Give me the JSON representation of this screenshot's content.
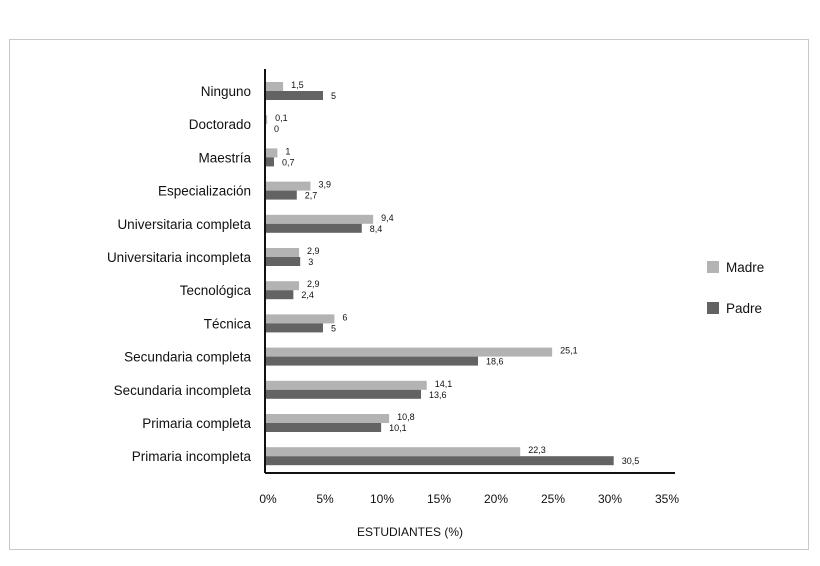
{
  "chart_data": {
    "type": "bar",
    "orientation": "horizontal",
    "title": "",
    "xlabel": "ESTUDIANTES (%)",
    "ylabel": "",
    "xlim": [
      0,
      35
    ],
    "x_ticks": [
      0,
      5,
      10,
      15,
      20,
      25,
      30,
      35
    ],
    "x_tick_labels": [
      "0%",
      "5%",
      "10%",
      "15%",
      "20%",
      "25%",
      "30%",
      "35%"
    ],
    "grid": false,
    "legend_position": "right",
    "categories": [
      "Ninguno",
      "Doctorado",
      "Maestría",
      "Especialización",
      "Universitaria completa",
      "Universitaria incompleta",
      "Tecnológica",
      "Técnica",
      "Secundaria completa",
      "Secundaria incompleta",
      "Primaria completa",
      "Primaria incompleta"
    ],
    "series": [
      {
        "name": "Madre",
        "color": "#b3b3b3",
        "values": [
          1.5,
          0.1,
          1,
          3.9,
          9.4,
          2.9,
          2.9,
          6,
          25.1,
          14.1,
          10.8,
          22.3
        ],
        "labels": [
          "1,5",
          "0,1",
          "1",
          "3,9",
          "9,4",
          "2,9",
          "2,9",
          "6",
          "25,1",
          "14,1",
          "10,8",
          "22,3"
        ]
      },
      {
        "name": "Padre",
        "color": "#636363",
        "values": [
          5,
          0,
          0.7,
          2.7,
          8.4,
          3,
          2.4,
          5,
          18.6,
          13.6,
          10.1,
          30.5
        ],
        "labels": [
          "5",
          "0",
          "0,7",
          "2,7",
          "8,4",
          "3",
          "2,4",
          "5",
          "18,6",
          "13,6",
          "10,1",
          "30,5"
        ]
      }
    ]
  }
}
